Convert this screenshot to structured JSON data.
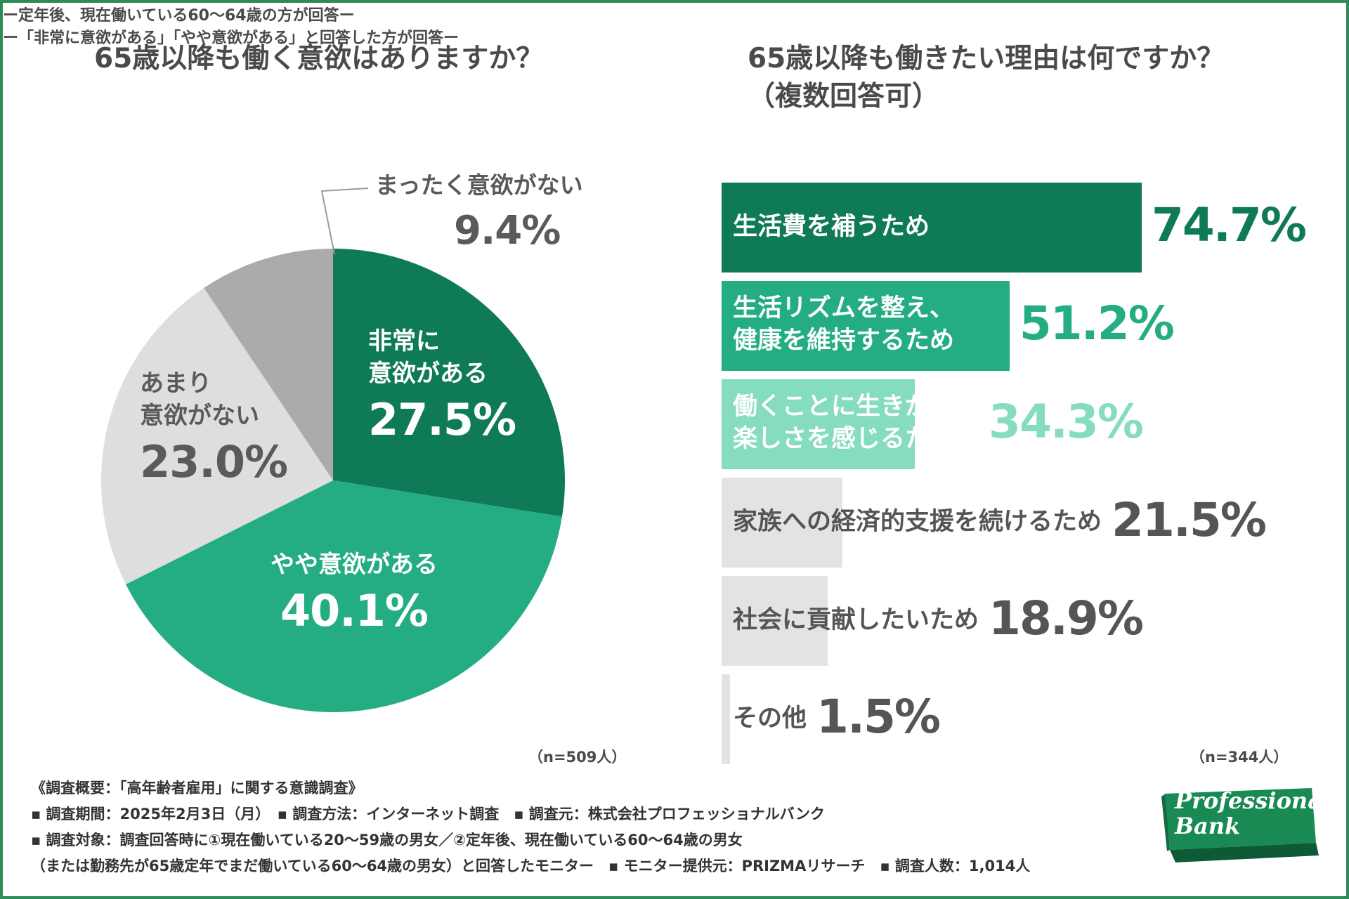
{
  "left": {
    "title": "65歳以降も働く意欲はありますか？",
    "subtitle": "ー定年後、現在働いている60〜64歳の方が回答ー",
    "n_note": "（n=509人）"
  },
  "right": {
    "title_line1": "65歳以降も働きたい理由は何ですか？",
    "title_line2": "（複数回答可）",
    "subtitle": "ー「非常に意欲がある」「やや意欲がある」と回答した方が回答ー",
    "n_note": "（n=344人）"
  },
  "chart_data": [
    {
      "type": "pie",
      "title": "65歳以降も働く意欲はありますか？",
      "slices": [
        {
          "label": "非常に意欲がある",
          "label_lines": [
            "非常に",
            "意欲がある"
          ],
          "value": 27.5,
          "pct_text": "27.5%",
          "color": "#0f7a57"
        },
        {
          "label": "やや意欲がある",
          "label_lines": [
            "やや意欲がある"
          ],
          "value": 40.1,
          "pct_text": "40.1%",
          "color": "#24ad82"
        },
        {
          "label": "あまり意欲がない",
          "label_lines": [
            "あまり",
            "意欲がない"
          ],
          "value": 23.0,
          "pct_text": "23.0%",
          "color": "#dedede"
        },
        {
          "label": "まったく意欲がない",
          "label_lines": [
            "まったく意欲がない"
          ],
          "value": 9.4,
          "pct_text": "9.4%",
          "color": "#ababab"
        }
      ]
    },
    {
      "type": "bar",
      "orientation": "horizontal",
      "title": "65歳以降も働きたい理由は何ですか？（複数回答可）",
      "xlim": [
        0,
        74.7
      ],
      "bars": [
        {
          "label_lines": [
            "生活費を補うため"
          ],
          "value": 74.7,
          "pct_text": "74.7%",
          "color": "#0f7a57",
          "label_color": "#ffffff",
          "pct_color": "#0f7a57"
        },
        {
          "label_lines": [
            "生活リズムを整え、",
            "健康を維持するため"
          ],
          "value": 51.2,
          "pct_text": "51.2%",
          "color": "#24ad82",
          "label_color": "#ffffff",
          "pct_color": "#24ad82"
        },
        {
          "label_lines": [
            "働くことに生きがいや",
            "楽しさを感じるため"
          ],
          "value": 34.3,
          "pct_text": "34.3%",
          "color": "#86dcc0",
          "label_color": "#ffffff",
          "pct_color": "#86dcc0"
        },
        {
          "label_lines": [
            "家族への経済的支援を続けるため"
          ],
          "value": 21.5,
          "pct_text": "21.5%",
          "color": "#e3e3e3",
          "label_color": "#555555",
          "pct_color": "#555555"
        },
        {
          "label_lines": [
            "社会に貢献したいため"
          ],
          "value": 18.9,
          "pct_text": "18.9%",
          "color": "#e3e3e3",
          "label_color": "#555555",
          "pct_color": "#555555"
        },
        {
          "label_lines": [
            "その他"
          ],
          "value": 1.5,
          "pct_text": "1.5%",
          "color": "#e3e3e3",
          "label_color": "#555555",
          "pct_color": "#555555"
        }
      ]
    }
  ],
  "footer": {
    "line1": "《調査概要：「高年齢者雇用」に関する意識調査》",
    "line2": "▪ 調査期間：2025年2月3日（月）　▪ 調査方法：インターネット調査　▪ 調査元：株式会社プロフェッショナルバンク",
    "line3": "▪ 調査対象：調査回答時に①現在働いている20〜59歳の男女／②定年後、現在働いている60〜64歳の男女",
    "line4": "（または勤務先が65歳定年でまだ働いている60〜64歳の男女）と回答したモニター　▪ モニター提供元：PRIZMAリサーチ　▪ 調査人数：1,014人"
  },
  "logo": {
    "line1": "Professional",
    "line2": "Bank",
    "color": "#1a8a55"
  },
  "colors": {
    "frame": "#2e8b57",
    "dark_green": "#0f7a57",
    "mid_green": "#24ad82",
    "light_green": "#86dcc0"
  }
}
